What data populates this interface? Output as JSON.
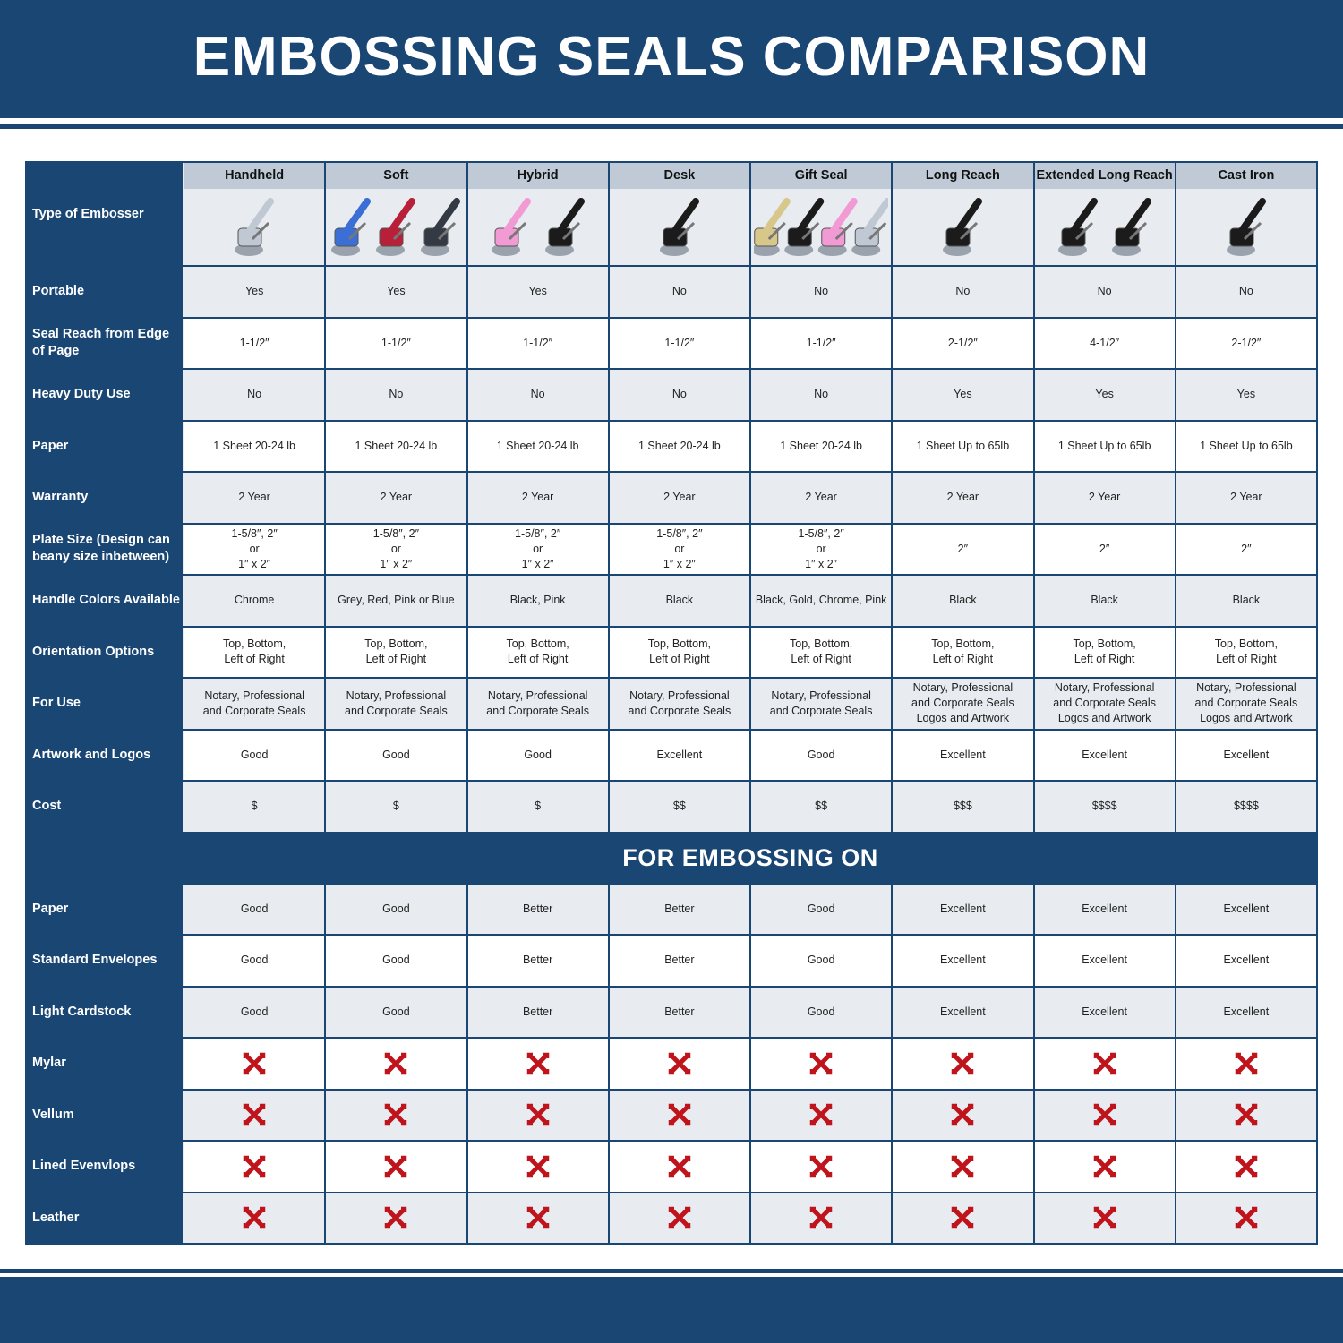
{
  "title": "EMBOSSING SEALS COMPARISON",
  "type_label": "Type of Embosser",
  "types": [
    {
      "name": "Handheld",
      "colors": [
        "#c0c8d4"
      ]
    },
    {
      "name": "Soft",
      "colors": [
        "#3b6fd6",
        "#b8203a",
        "#333a44"
      ]
    },
    {
      "name": "Hybrid",
      "colors": [
        "#f29ad4",
        "#1b1b1b"
      ]
    },
    {
      "name": "Desk",
      "colors": [
        "#1b1b1b"
      ]
    },
    {
      "name": "Gift Seal",
      "colors": [
        "#d8c78a",
        "#1b1b1b",
        "#f29ad4",
        "#c0c8d4"
      ]
    },
    {
      "name": "Long Reach",
      "colors": [
        "#1b1b1b"
      ]
    },
    {
      "name": "Extended Long Reach",
      "colors": [
        "#1b1b1b",
        "#1b1b1b"
      ]
    },
    {
      "name": "Cast Iron",
      "colors": [
        "#1b1b1b"
      ]
    }
  ],
  "rows": [
    {
      "label": "Portable",
      "values": [
        "Yes",
        "Yes",
        "Yes",
        "No",
        "No",
        "No",
        "No",
        "No"
      ]
    },
    {
      "label": "Seal Reach from Edge of Page",
      "values": [
        "1-1/2″",
        "1-1/2″",
        "1-1/2″",
        "1-1/2″",
        "1-1/2″",
        "2-1/2″",
        "4-1/2″",
        "2-1/2″"
      ]
    },
    {
      "label": "Heavy Duty Use",
      "values": [
        "No",
        "No",
        "No",
        "No",
        "No",
        "Yes",
        "Yes",
        "Yes"
      ]
    },
    {
      "label": "Paper",
      "values": [
        "1 Sheet 20-24 lb",
        "1 Sheet 20-24 lb",
        "1 Sheet 20-24 lb",
        "1 Sheet 20-24 lb",
        "1 Sheet 20-24 lb",
        "1 Sheet Up to 65lb",
        "1 Sheet Up to 65lb",
        "1 Sheet Up to 65lb"
      ]
    },
    {
      "label": "Warranty",
      "values": [
        "2 Year",
        "2 Year",
        "2 Year",
        "2 Year",
        "2 Year",
        "2 Year",
        "2 Year",
        "2 Year"
      ]
    },
    {
      "label": "Plate Size (Design can beany size inbetween)",
      "values": [
        "1-5/8″, 2″\nor\n1″ x 2″",
        "1-5/8″, 2″\nor\n1″ x 2″",
        "1-5/8″, 2″\nor\n1″ x 2″",
        "1-5/8″, 2″\nor\n1″ x 2″",
        "1-5/8″, 2″\nor\n1″ x 2″",
        "2″",
        "2″",
        "2″"
      ]
    },
    {
      "label": "Handle Colors Available",
      "values": [
        "Chrome",
        "Grey, Red, Pink or Blue",
        "Black, Pink",
        "Black",
        "Black, Gold, Chrome, Pink",
        "Black",
        "Black",
        "Black"
      ]
    },
    {
      "label": "Orientation Options",
      "values": [
        "Top, Bottom,\nLeft of Right",
        "Top, Bottom,\nLeft of Right",
        "Top, Bottom,\nLeft of Right",
        "Top, Bottom,\nLeft of Right",
        "Top, Bottom,\nLeft of Right",
        "Top, Bottom,\nLeft of Right",
        "Top, Bottom,\nLeft of Right",
        "Top, Bottom,\nLeft of Right"
      ]
    },
    {
      "label": "For Use",
      "values": [
        "Notary, Professional\nand Corporate Seals",
        "Notary, Professional\nand Corporate Seals",
        "Notary, Professional\nand Corporate Seals",
        "Notary, Professional\nand Corporate Seals",
        "Notary, Professional\nand Corporate Seals",
        "Notary, Professional\nand Corporate Seals\nLogos and Artwork",
        "Notary, Professional\nand Corporate Seals\nLogos and Artwork",
        "Notary, Professional\nand Corporate Seals\nLogos and Artwork"
      ]
    },
    {
      "label": "Artwork and Logos",
      "values": [
        "Good",
        "Good",
        "Good",
        "Excellent",
        "Good",
        "Excellent",
        "Excellent",
        "Excellent"
      ]
    },
    {
      "label": "Cost",
      "values": [
        "$",
        "$",
        "$",
        "$$",
        "$$",
        "$$$",
        "$$$$",
        "$$$$"
      ]
    }
  ],
  "section_title": "FOR EMBOSSING ON",
  "embossing_rows": [
    {
      "label": "Paper",
      "values": [
        "Good",
        "Good",
        "Better",
        "Better",
        "Good",
        "Excellent",
        "Excellent",
        "Excellent"
      ]
    },
    {
      "label": "Standard Envelopes",
      "values": [
        "Good",
        "Good",
        "Better",
        "Better",
        "Good",
        "Excellent",
        "Excellent",
        "Excellent"
      ]
    },
    {
      "label": "Light Cardstock",
      "values": [
        "Good",
        "Good",
        "Better",
        "Better",
        "Good",
        "Excellent",
        "Excellent",
        "Excellent"
      ]
    },
    {
      "label": "Mylar",
      "values": [
        "x",
        "x",
        "x",
        "x",
        "x",
        "x",
        "x",
        "x"
      ]
    },
    {
      "label": "Vellum",
      "values": [
        "x",
        "x",
        "x",
        "x",
        "x",
        "x",
        "x",
        "x"
      ]
    },
    {
      "label": "Lined Evenvlops",
      "values": [
        "x",
        "x",
        "x",
        "x",
        "x",
        "x",
        "x",
        "x"
      ]
    },
    {
      "label": "Leather",
      "values": [
        "x",
        "x",
        "x",
        "x",
        "x",
        "x",
        "x",
        "x"
      ]
    }
  ],
  "icons": {
    "not_supported": "red-x-icon"
  },
  "colors": {
    "navy": "#1a4674",
    "header_cell": "#bfcad6",
    "light_row": "#e8ecf0",
    "cross": "#c0141c"
  }
}
